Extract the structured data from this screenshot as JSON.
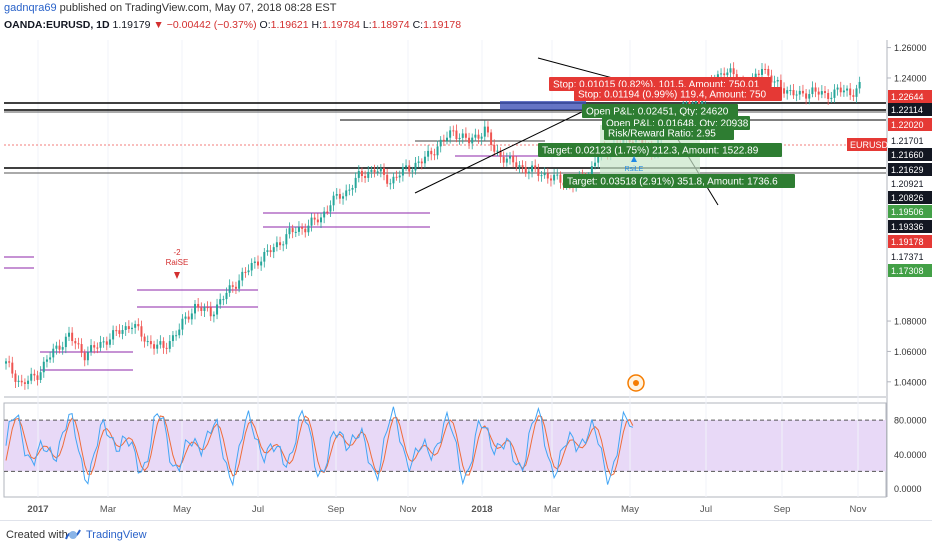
{
  "header": {
    "author": "gadnqra69",
    "published": "published on TradingView.com, May 07, 2018 08:28 EST"
  },
  "symbol_bar": {
    "symbol": "OANDA:EURUSD, 1D",
    "last": "1.19179",
    "change": "▼ −0.00442 (−0.37%)",
    "o_label": "O:",
    "o_value": "1.19621",
    "h_label": "H:",
    "h_value": "1.19784",
    "l_label": "L:",
    "l_value": "1.18974",
    "c_label": "C:",
    "c_value": "1.19178"
  },
  "colors": {
    "up": "#26a69a",
    "down": "#ef5350",
    "stop_box": "#e53935",
    "target_box": "#43a047",
    "green_label": "#2e7d32",
    "indicator_bg": "#e8d9f7",
    "k_line": "#42a5f5",
    "d_line": "#ef6c3a",
    "ordinary_line": "#000000",
    "purple_line": "#8e24aa"
  },
  "chart_data": {
    "type": "candlestick",
    "title": "OANDA:EURUSD, 1D",
    "x_ticks": [
      "2017",
      "Mar",
      "May",
      "Jul",
      "Sep",
      "Nov",
      "2018",
      "Mar",
      "May",
      "Jul",
      "Sep",
      "Nov"
    ],
    "price_axis": {
      "range": [
        1.03,
        1.265
      ],
      "ticks": [
        "1.26000",
        "1.24000",
        "1.08000",
        "1.06000",
        "1.04000"
      ],
      "labels": [
        {
          "text": "1.22644",
          "style": "red"
        },
        {
          "text": "1.22114",
          "style": "dark"
        },
        {
          "text": "1.22020",
          "style": "red"
        },
        {
          "text": "1.21701",
          "style": "plain"
        },
        {
          "text": "1.21660",
          "style": "dark"
        },
        {
          "text": "1.21629",
          "style": "dark"
        },
        {
          "text": "1.20921",
          "style": "plain"
        },
        {
          "text": "1.20826",
          "style": "dark"
        },
        {
          "text": "1.19506",
          "style": "green"
        },
        {
          "text": "1.19336",
          "style": "dark"
        },
        {
          "text": "1.19178",
          "style": "red"
        },
        {
          "text": "1.17371",
          "style": "plain"
        },
        {
          "text": "1.17308",
          "style": "green"
        }
      ],
      "symbol_tag": "EURUSD"
    },
    "price_trace": [
      [
        0,
        1.052
      ],
      [
        5,
        1.038
      ],
      [
        10,
        1.045
      ],
      [
        15,
        1.06
      ],
      [
        20,
        1.07
      ],
      [
        25,
        1.058
      ],
      [
        30,
        1.065
      ],
      [
        35,
        1.072
      ],
      [
        40,
        1.078
      ],
      [
        45,
        1.066
      ],
      [
        50,
        1.062
      ],
      [
        55,
        1.075
      ],
      [
        60,
        1.09
      ],
      [
        65,
        1.085
      ],
      [
        68,
        1.093
      ],
      [
        70,
        1.098
      ],
      [
        75,
        1.11
      ],
      [
        80,
        1.12
      ],
      [
        85,
        1.128
      ],
      [
        90,
        1.138
      ],
      [
        95,
        1.142
      ],
      [
        100,
        1.148
      ],
      [
        103,
        1.158
      ],
      [
        108,
        1.165
      ],
      [
        112,
        1.175
      ],
      [
        117,
        1.18
      ],
      [
        122,
        1.172
      ],
      [
        127,
        1.18
      ],
      [
        132,
        1.185
      ],
      [
        137,
        1.195
      ],
      [
        142,
        1.205
      ],
      [
        147,
        1.198
      ],
      [
        152,
        1.206
      ],
      [
        155,
        1.192
      ],
      [
        160,
        1.185
      ],
      [
        165,
        1.18
      ],
      [
        170,
        1.177
      ],
      [
        175,
        1.173
      ],
      [
        180,
        1.17
      ],
      [
        185,
        1.176
      ],
      [
        188,
        1.19
      ],
      [
        193,
        1.195
      ],
      [
        198,
        1.2
      ],
      [
        200,
        1.203
      ],
      [
        205,
        1.19
      ],
      [
        208,
        1.205
      ],
      [
        212,
        1.218
      ],
      [
        216,
        1.222
      ],
      [
        220,
        1.225
      ],
      [
        224,
        1.238
      ],
      [
        228,
        1.245
      ],
      [
        232,
        1.24
      ],
      [
        236,
        1.232
      ],
      [
        240,
        1.248
      ],
      [
        244,
        1.236
      ],
      [
        248,
        1.232
      ],
      [
        252,
        1.228
      ],
      [
        256,
        1.232
      ],
      [
        260,
        1.228
      ],
      [
        264,
        1.232
      ],
      [
        268,
        1.23
      ],
      [
        272,
        1.236
      ]
    ],
    "trade_boxes": [
      {
        "kind": "stop",
        "text": "Stop: 0.01015 (0.82%), 101.5, Amount: 750.01"
      },
      {
        "kind": "stop",
        "text": "Stop: 0.01194 (0.99%) 119.4, Amount: 750"
      },
      {
        "kind": "target",
        "text": "Open P&L: 0.02451, Qty: 24620"
      },
      {
        "kind": "target",
        "text": "Open P&L: 0.01648, Qty: 20938"
      },
      {
        "kind": "target",
        "text": "Risk/Reward Ratio: 2.95"
      },
      {
        "kind": "target",
        "text": "Target: 0.02123 (1.75%) 212.3, Amount: 1522.89"
      },
      {
        "kind": "target",
        "text": "Target: 0.03518 (2.91%) 351.8, Amount: 1736.6"
      }
    ],
    "annotations": {
      "raise_marker": [
        "-2",
        "RaiSE"
      ],
      "small_marker": "RsiLE"
    },
    "indicator": {
      "type": "line",
      "range": [
        -10,
        100
      ],
      "ticks": [
        "80.0000",
        "40.0000",
        "0.0000"
      ],
      "levels": [
        80,
        20
      ]
    }
  },
  "footer": {
    "created_with": "Created with",
    "brand": "TradingView"
  }
}
